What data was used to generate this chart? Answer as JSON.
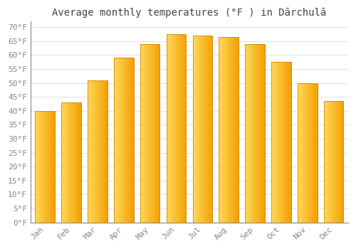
{
  "title": "Average monthly temperatures (°F ) in Dārchulā",
  "months": [
    "Jan",
    "Feb",
    "Mar",
    "Apr",
    "May",
    "Jun",
    "Jul",
    "Aug",
    "Sep",
    "Oct",
    "Nov",
    "Dec"
  ],
  "values": [
    40,
    43,
    51,
    59,
    64,
    67.5,
    67,
    66.5,
    64,
    57.5,
    50,
    43.5
  ],
  "bar_color_left": "#FFCC44",
  "bar_color_right": "#F5A000",
  "bar_edge_color": "#D4880A",
  "background_color": "#FFFFFF",
  "grid_color": "#DDDDDD",
  "ylim": [
    0,
    72
  ],
  "yticks": [
    0,
    5,
    10,
    15,
    20,
    25,
    30,
    35,
    40,
    45,
    50,
    55,
    60,
    65,
    70
  ],
  "title_fontsize": 10,
  "tick_fontsize": 8,
  "title_color": "#444444",
  "tick_color": "#888888",
  "bar_width": 0.75
}
